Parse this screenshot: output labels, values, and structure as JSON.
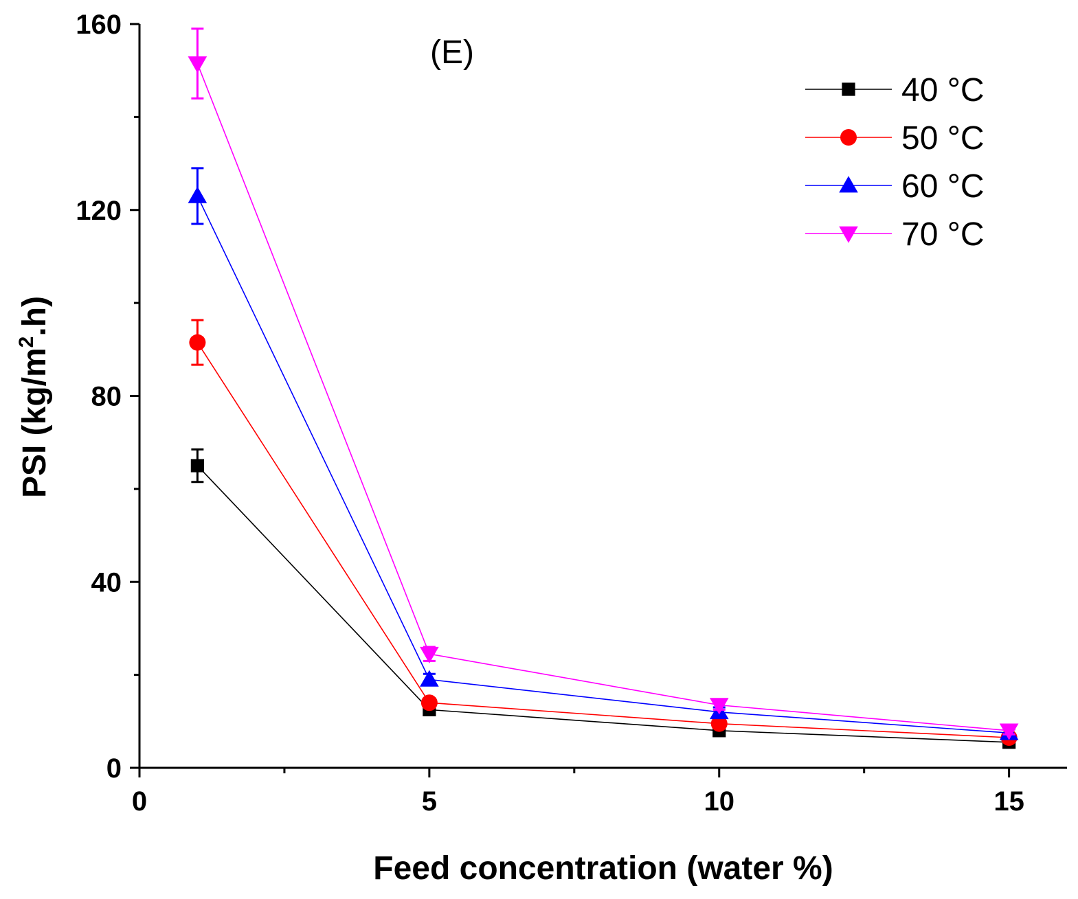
{
  "chart_data": {
    "type": "line",
    "title": "",
    "annotation": "(E)",
    "xlabel": "Feed concentration (water %)",
    "ylabel_main": "PSI (kg/m",
    "ylabel_sup": "2",
    "ylabel_tail": ".h)",
    "xlim": [
      0,
      16
    ],
    "ylim": [
      0,
      160
    ],
    "xticks": [
      0,
      5,
      10,
      15
    ],
    "xminor": [
      2.5,
      7.5,
      12.5
    ],
    "yticks": [
      0,
      40,
      80,
      120,
      160
    ],
    "yminor": [
      20,
      60,
      100,
      140
    ],
    "x": [
      1,
      5,
      10,
      15
    ],
    "legend_position": "top-right",
    "series": [
      {
        "name": "40 °C",
        "color": "#000000",
        "marker": "square",
        "values": [
          65,
          12.5,
          8,
          5.5
        ],
        "errors": [
          3.5,
          1,
          1,
          0.8
        ]
      },
      {
        "name": "50 °C",
        "color": "#ff0000",
        "marker": "circle",
        "values": [
          91.5,
          14,
          9.5,
          6.5
        ],
        "errors": [
          4.8,
          1,
          1,
          0.8
        ]
      },
      {
        "name": "60 °C",
        "color": "#0000ff",
        "marker": "triangle-up",
        "values": [
          123,
          19,
          12,
          7.5
        ],
        "errors": [
          6,
          1.2,
          1,
          0.8
        ]
      },
      {
        "name": "70 °C",
        "color": "#ff00ff",
        "marker": "triangle-down",
        "values": [
          151.5,
          24.5,
          13.5,
          8
        ],
        "errors": [
          7.5,
          1.5,
          1,
          0.8
        ]
      }
    ]
  }
}
